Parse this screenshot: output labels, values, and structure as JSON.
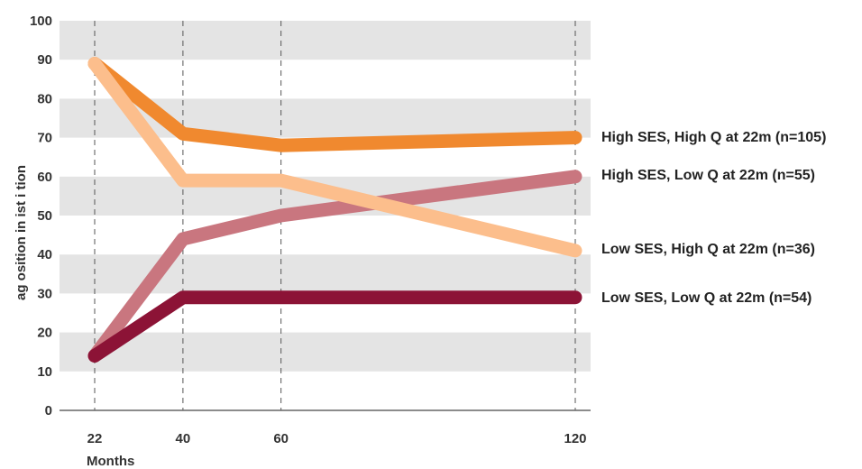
{
  "chart_data": {
    "type": "line",
    "xlabel": "Months",
    "ylabel": "ag osition in ist i tion",
    "x": [
      22,
      40,
      60,
      120
    ],
    "x_ticks": [
      22,
      40,
      60,
      120
    ],
    "ylim": [
      0,
      100
    ],
    "y_ticks": [
      0,
      10,
      20,
      30,
      40,
      50,
      60,
      70,
      80,
      90,
      100
    ],
    "grid": "alternating horizontal bands",
    "legend_placement": "right, at line ends",
    "series": [
      {
        "name": "High SES, High Q at 22m (n=105)",
        "color": "#f0892f",
        "points": [
          [
            22,
            89
          ],
          [
            40,
            71
          ],
          [
            60,
            68
          ],
          [
            120,
            70
          ]
        ]
      },
      {
        "name": "High SES, Low Q at 22m (n=55)",
        "color": "#c9767f",
        "points": [
          [
            22,
            14
          ],
          [
            40,
            44
          ],
          [
            60,
            50
          ],
          [
            120,
            60
          ]
        ]
      },
      {
        "name": "Low SES, High Q at 22m (n=36)",
        "color": "#fcbe8c",
        "points": [
          [
            22,
            89
          ],
          [
            40,
            59
          ],
          [
            60,
            59
          ],
          [
            120,
            41
          ]
        ]
      },
      {
        "name": "Low SES, Low Q at 22m (n=54)",
        "color": "#8c1336",
        "points": [
          [
            22,
            14
          ],
          [
            40,
            29
          ],
          [
            60,
            29
          ],
          [
            120,
            29
          ]
        ]
      }
    ]
  }
}
